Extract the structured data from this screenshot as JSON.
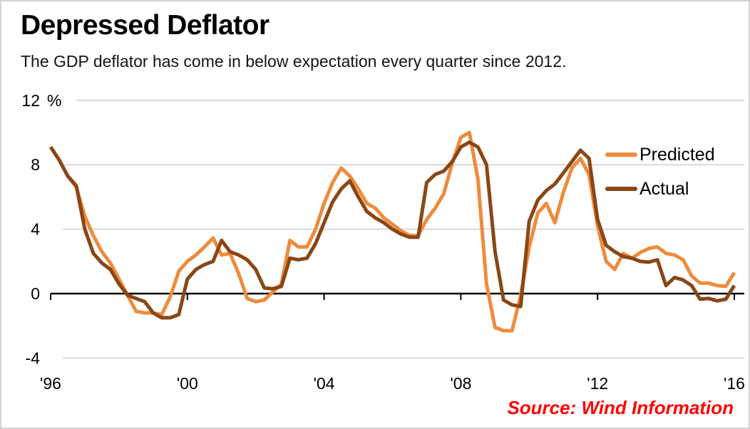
{
  "header": {
    "title": "Depressed Deflator",
    "subtitle": "The GDP deflator has come in below expectation every quarter since 2012."
  },
  "source": {
    "label": "Source: Wind Information",
    "color": "#ff0000"
  },
  "legend": {
    "items": [
      {
        "label": "Predicted"
      },
      {
        "label": "Actual"
      }
    ]
  },
  "chart_data": {
    "type": "line",
    "title": "Depressed Deflator",
    "subtitle": "The GDP deflator has come in below expectation every quarter since 2012.",
    "unit_label": "%",
    "x_start": 1996.0,
    "x_step": 0.25,
    "x_tick_years": [
      1996,
      2000,
      2004,
      2008,
      2012,
      2016
    ],
    "x_tick_labels": [
      "'96",
      "'00",
      "'04",
      "'08",
      "'12",
      "'16"
    ],
    "y_ticks": [
      12,
      8,
      4,
      0,
      -4
    ],
    "ylim": [
      -4,
      12
    ],
    "grid": true,
    "legend_position": "upper right",
    "axis_color": "#000000",
    "gridline_color": "#d9d9d9",
    "series": [
      {
        "name": "Predicted",
        "color": "#ED8C3D",
        "values": [
          9.1,
          8.3,
          7.3,
          6.6,
          4.8,
          3.6,
          2.6,
          1.9,
          0.9,
          -0.1,
          -1.1,
          -1.2,
          -1.2,
          -1.3,
          -0.2,
          1.4,
          2.0,
          2.4,
          2.9,
          3.45,
          2.4,
          2.5,
          1.25,
          -0.3,
          -0.5,
          -0.4,
          0.1,
          0.6,
          3.3,
          2.9,
          2.9,
          4.0,
          5.6,
          6.9,
          7.8,
          7.3,
          6.5,
          5.6,
          5.3,
          4.7,
          4.3,
          3.9,
          3.6,
          3.6,
          4.6,
          5.3,
          6.2,
          8.1,
          9.7,
          10.0,
          7.1,
          0.6,
          -2.1,
          -2.3,
          -2.3,
          -0.1,
          2.9,
          5.0,
          5.6,
          4.4,
          6.3,
          7.8,
          8.4,
          7.4,
          4.2,
          2.0,
          1.5,
          2.5,
          2.2,
          2.55,
          2.8,
          2.9,
          2.5,
          2.4,
          2.1,
          1.1,
          0.65,
          0.65,
          0.5,
          0.45,
          1.3
        ]
      },
      {
        "name": "Actual",
        "color": "#8A4616",
        "values": [
          9.1,
          8.3,
          7.3,
          6.7,
          4.0,
          2.5,
          1.9,
          1.5,
          0.6,
          -0.1,
          -0.3,
          -0.5,
          -1.2,
          -1.5,
          -1.5,
          -1.3,
          0.9,
          1.5,
          1.8,
          2.0,
          3.3,
          2.6,
          2.4,
          2.1,
          1.5,
          0.35,
          0.3,
          0.45,
          2.2,
          2.1,
          2.2,
          3.1,
          4.4,
          5.7,
          6.5,
          7.0,
          6.0,
          5.1,
          4.7,
          4.4,
          4.0,
          3.7,
          3.5,
          3.5,
          6.9,
          7.4,
          7.6,
          8.2,
          9.1,
          9.4,
          9.1,
          8.0,
          2.6,
          -0.4,
          -0.7,
          -0.8,
          4.5,
          5.8,
          6.4,
          6.8,
          7.5,
          8.2,
          8.9,
          8.4,
          4.6,
          3.0,
          2.6,
          2.3,
          2.2,
          2.0,
          1.95,
          2.1,
          0.5,
          1.0,
          0.85,
          0.5,
          -0.35,
          -0.3,
          -0.45,
          -0.35,
          0.5
        ]
      }
    ]
  }
}
